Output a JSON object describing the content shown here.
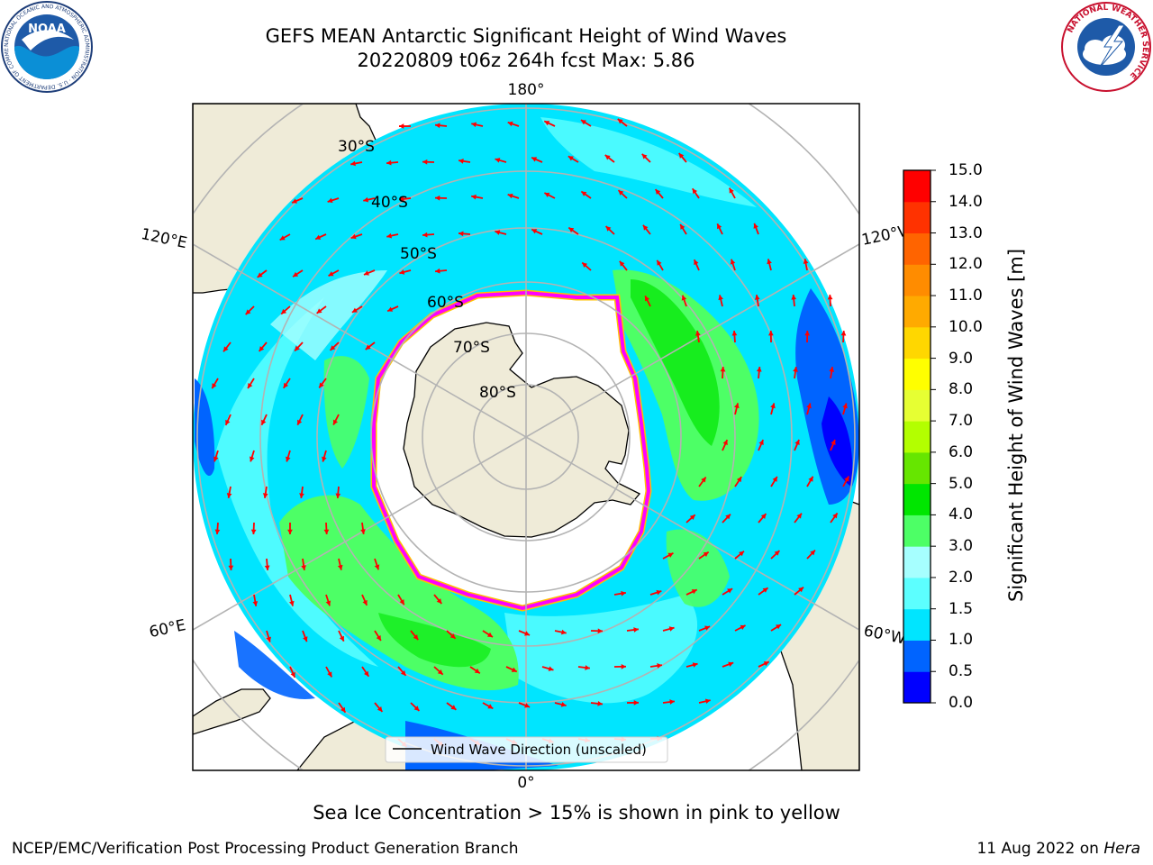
{
  "title": {
    "line1": "GEFS MEAN Antarctic Significant Height of Wind Waves",
    "line2": "20220809 t06z 264h fcst   Max: 5.86"
  },
  "map": {
    "projection": "south-polar-stereographic",
    "longitude_labels": {
      "top": "180°",
      "bottom": "0°",
      "upper_left": "120°E",
      "upper_right": "120°W",
      "lower_left": "60°E",
      "lower_right": "60°W"
    },
    "latitude_labels": [
      "30°S",
      "40°S",
      "50°S",
      "60°S",
      "70°S",
      "80°S"
    ],
    "legend": "Wind Wave Direction (unscaled)",
    "colors": {
      "land": "#efebd8",
      "ice_edge_inner": "#ff00ff",
      "ice_edge_outer": "#ffc000",
      "arrows": "#ff0000",
      "gridlines": "#b3b3b3"
    }
  },
  "colorbar": {
    "label": "Significant Height of Wind Waves [m]",
    "ticks": [
      "0.0",
      "0.5",
      "1.0",
      "1.5",
      "2.0",
      "3.0",
      "4.0",
      "5.0",
      "6.0",
      "7.0",
      "8.0",
      "9.0",
      "10.0",
      "11.0",
      "12.0",
      "13.0",
      "14.0",
      "15.0"
    ],
    "colors": [
      "#0000ff",
      "#0064ff",
      "#00e5ff",
      "#5cffff",
      "#a6ffff",
      "#4dff66",
      "#00e600",
      "#66e600",
      "#b3ff00",
      "#e6ff33",
      "#ffff00",
      "#ffd700",
      "#ffaa00",
      "#ff8c00",
      "#ff6400",
      "#ff3200",
      "#ff0000"
    ]
  },
  "caption": "Sea Ice Concentration > 15% is shown in pink to yellow",
  "footer": {
    "left": "NCEP/EMC/Verification Post Processing Product Generation Branch",
    "right_prefix": "11 Aug 2022 on ",
    "right_host": "Hera"
  },
  "logos": {
    "noaa": "NOAA",
    "noaa_ring": "NATIONAL OCEANIC AND ATMOSPHERIC ADMINISTRATION · U.S. DEPARTMENT OF COMMERCE",
    "nws_ring": "NATIONAL WEATHER SERVICE"
  }
}
